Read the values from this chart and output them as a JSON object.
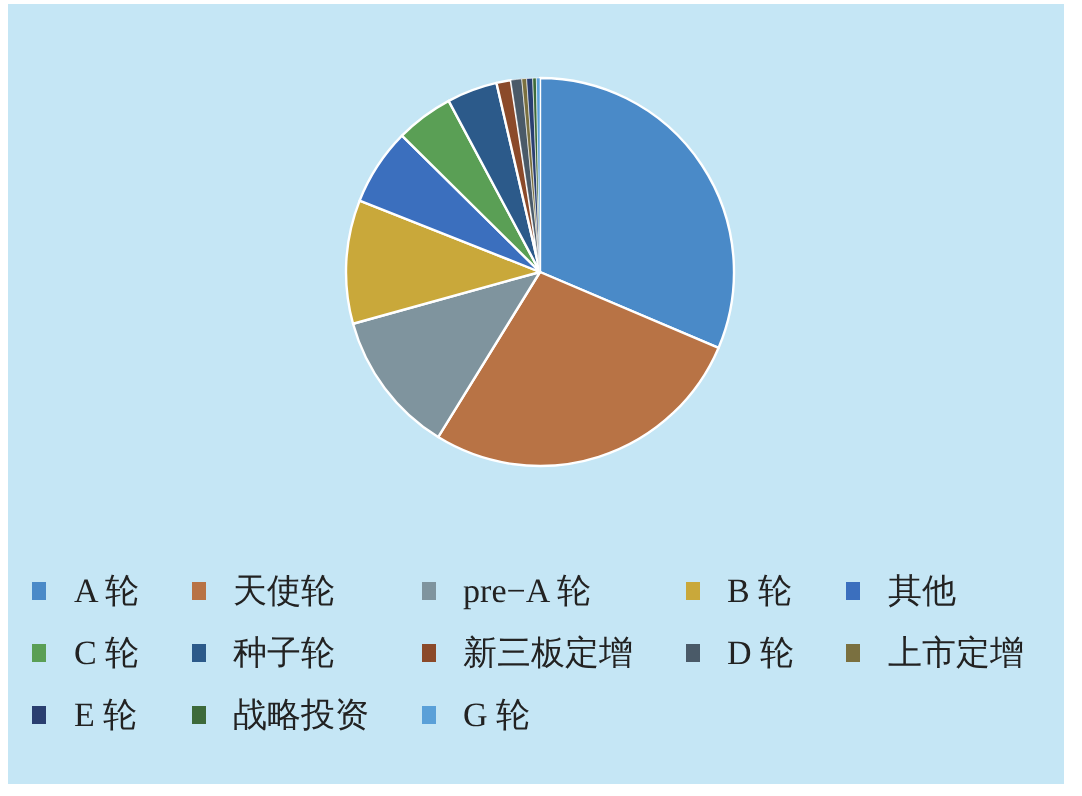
{
  "chart_data": {
    "type": "pie",
    "legend": "bottom",
    "categories": [
      "A 轮",
      "天使轮",
      "pre−A 轮",
      "B 轮",
      "其他",
      "C 轮",
      "种子轮",
      "新三板定增",
      "D 轮",
      "上市定增",
      "E 轮",
      "战略投资",
      "G 轮"
    ],
    "values": [
      31.4,
      27.4,
      11.9,
      10.3,
      6.4,
      4.8,
      4.2,
      1.2,
      0.9,
      0.4,
      0.5,
      0.3,
      0.3
    ],
    "colors": [
      "#4a8ac8",
      "#b87345",
      "#7f949e",
      "#c9a83a",
      "#3b6fbe",
      "#5a9f55",
      "#2c5a8a",
      "#8b4a2a",
      "#4a5a68",
      "#7a7040",
      "#2a3f70",
      "#3d6a3a",
      "#5aa0d8"
    ]
  }
}
